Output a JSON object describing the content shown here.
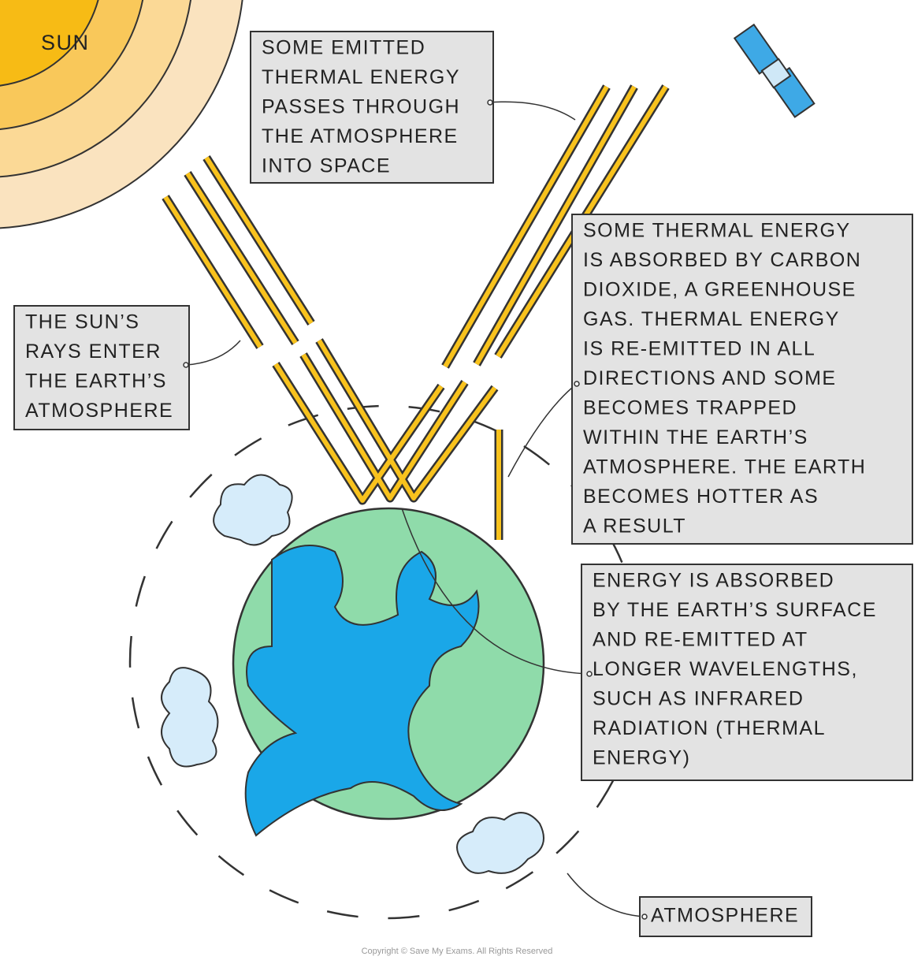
{
  "sun_label": "SUN",
  "boxes": [
    {
      "lines": [
        "SOME EMITTED",
        "THERMAL ENERGY",
        "PASSES THROUGH",
        "THE ATMOSPHERE",
        "INTO SPACE"
      ]
    },
    {
      "lines": [
        "THE SUN’S",
        "RAYS ENTER",
        "THE EARTH’S",
        "ATMOSPHERE"
      ]
    },
    {
      "lines": [
        "SOME THERMAL ENERGY",
        "IS ABSORBED BY CARBON",
        "DIOXIDE, A GREENHOUSE",
        "GAS. THERMAL ENERGY",
        "IS RE-EMITTED IN ALL",
        "DIRECTIONS AND SOME",
        "BECOMES TRAPPED",
        "WITHIN THE EARTH’S",
        "ATMOSPHERE. THE EARTH",
        "BECOMES HOTTER AS",
        "A RESULT"
      ]
    },
    {
      "lines": [
        "ENERGY IS ABSORBED",
        "BY THE EARTH’S SURFACE",
        "AND RE-EMITTED AT",
        "LONGER WAVELENGTHS,",
        "SUCH AS INFRARED",
        "RADIATION (THERMAL",
        "ENERGY)"
      ]
    },
    {
      "lines": [
        "ATMOSPHERE"
      ]
    }
  ],
  "copyright": "Copyright © Save My Exams. All Rights Reserved"
}
